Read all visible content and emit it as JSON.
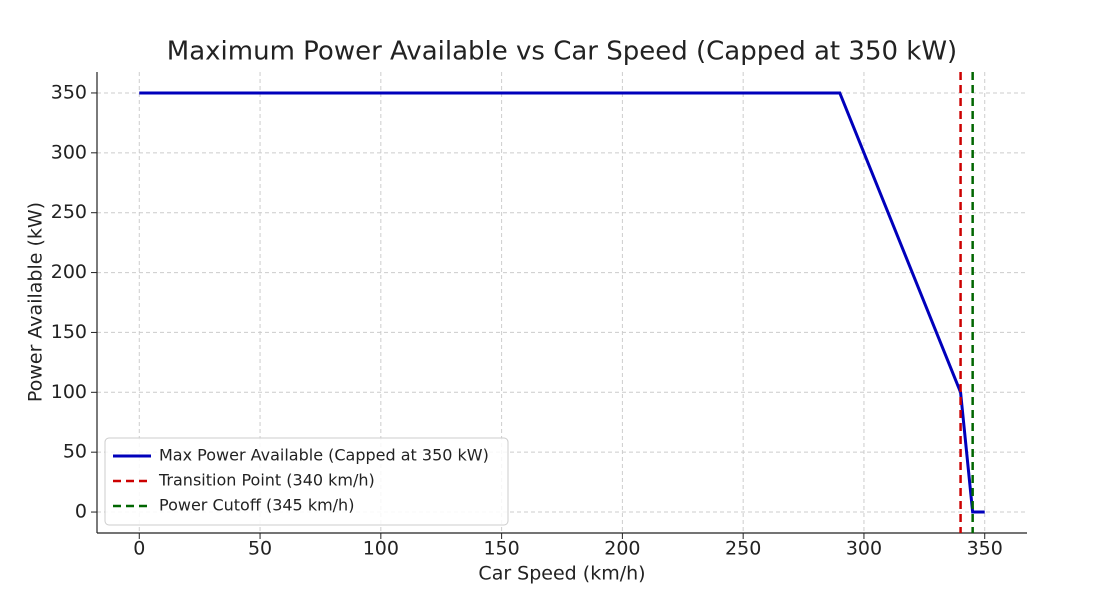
{
  "chart_data": {
    "type": "line",
    "title": "Maximum Power Available vs Car Speed (Capped at 350 kW)",
    "xlabel": "Car Speed (km/h)",
    "ylabel": "Power Available (kW)",
    "x": [
      0,
      290,
      340,
      345,
      350
    ],
    "series": [
      {
        "name": "Max Power Available (Capped at 350 kW)",
        "color": "#0000bb",
        "values": [
          350,
          350,
          100,
          0,
          0
        ]
      }
    ],
    "vlines": [
      {
        "name": "Transition Point (340 km/h)",
        "color": "#cc0000",
        "x": 340,
        "linestyle": "dashed"
      },
      {
        "name": "Power Cutoff (345 km/h)",
        "color": "#006600",
        "x": 345,
        "linestyle": "dashed"
      }
    ],
    "xlim": [
      -17.5,
      367.5
    ],
    "ylim": [
      -17.5,
      367.5
    ],
    "xticks": [
      0,
      50,
      100,
      150,
      200,
      250,
      300,
      350
    ],
    "yticks": [
      0,
      50,
      100,
      150,
      200,
      250,
      300,
      350
    ],
    "grid": true,
    "legend": "lower left"
  }
}
